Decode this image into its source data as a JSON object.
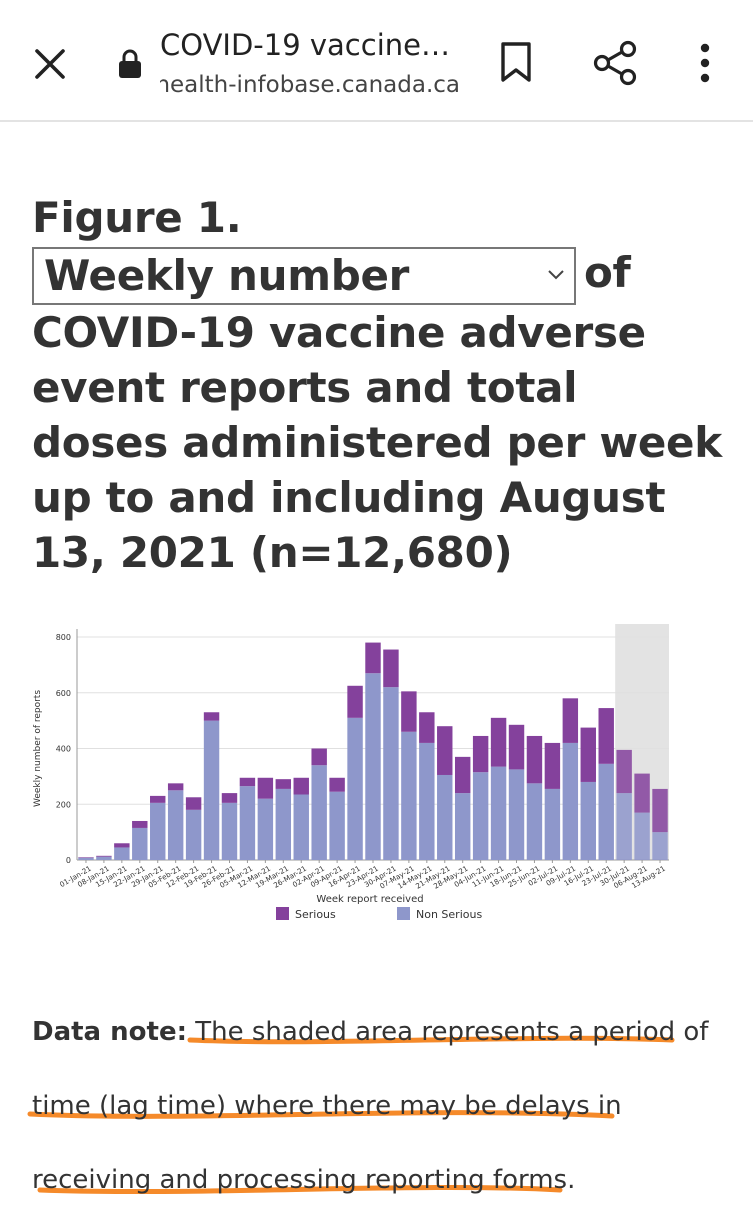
{
  "browser": {
    "page_title": "COVID-19 vaccine…",
    "url": "health-infobase.canada.ca",
    "icons": [
      "close-icon",
      "lock-icon",
      "bookmark-icon",
      "share-icon",
      "more-vert-icon"
    ]
  },
  "figure": {
    "label": "Figure 1.",
    "select_value": "Weekly number",
    "title_rest": "of COVID-19 vaccine adverse event reports and total doses administered per week up to and including August 13, 2021 (n=12,680)"
  },
  "chart_data": {
    "type": "bar",
    "stacked": true,
    "xlabel": "Week report received",
    "ylabel": "Weekly number of reports",
    "ylim": [
      0,
      800
    ],
    "yticks": [
      0,
      200,
      400,
      600,
      800
    ],
    "grid": true,
    "legend_position": "bottom",
    "shaded_region": {
      "from": "30-Jul-21",
      "to": "13-Aug-21",
      "color": "#e3e3e3"
    },
    "categories": [
      "01-Jan-21",
      "08-Jan-21",
      "15-Jan-21",
      "22-Jan-21",
      "29-Jan-21",
      "05-Feb-21",
      "12-Feb-21",
      "19-Feb-21",
      "26-Feb-21",
      "05-Mar-21",
      "12-Mar-21",
      "19-Mar-21",
      "26-Mar-21",
      "02-Apr-21",
      "09-Apr-21",
      "16-Apr-21",
      "23-Apr-21",
      "30-Apr-21",
      "07-May-21",
      "14-May-21",
      "21-May-21",
      "28-May-21",
      "04-Jun-21",
      "11-Jun-21",
      "18-Jun-21",
      "25-Jun-21",
      "02-Jul-21",
      "09-Jul-21",
      "16-Jul-21",
      "23-Jul-21",
      "30-Jul-21",
      "06-Aug-21",
      "13-Aug-21"
    ],
    "series": [
      {
        "name": "Non Serious",
        "color": "#8e97cb",
        "values": [
          8,
          12,
          45,
          115,
          205,
          250,
          180,
          500,
          205,
          265,
          220,
          255,
          235,
          340,
          245,
          510,
          670,
          620,
          460,
          420,
          305,
          240,
          315,
          335,
          325,
          275,
          255,
          420,
          280,
          345,
          240,
          170,
          100
        ]
      },
      {
        "name": "Serious",
        "color": "#84419c",
        "values": [
          2,
          3,
          15,
          25,
          25,
          25,
          45,
          30,
          35,
          30,
          75,
          35,
          60,
          60,
          50,
          115,
          110,
          135,
          145,
          110,
          175,
          130,
          130,
          175,
          160,
          170,
          165,
          160,
          195,
          200,
          155,
          140,
          155
        ]
      }
    ]
  },
  "data_note": {
    "label": "Data note:",
    "line1": "The shaded area represents a period of",
    "line2": "time (lag time) where there may be delays in",
    "line3": "receiving and processing reporting forms.",
    "underline_color": "#f58a2a"
  }
}
